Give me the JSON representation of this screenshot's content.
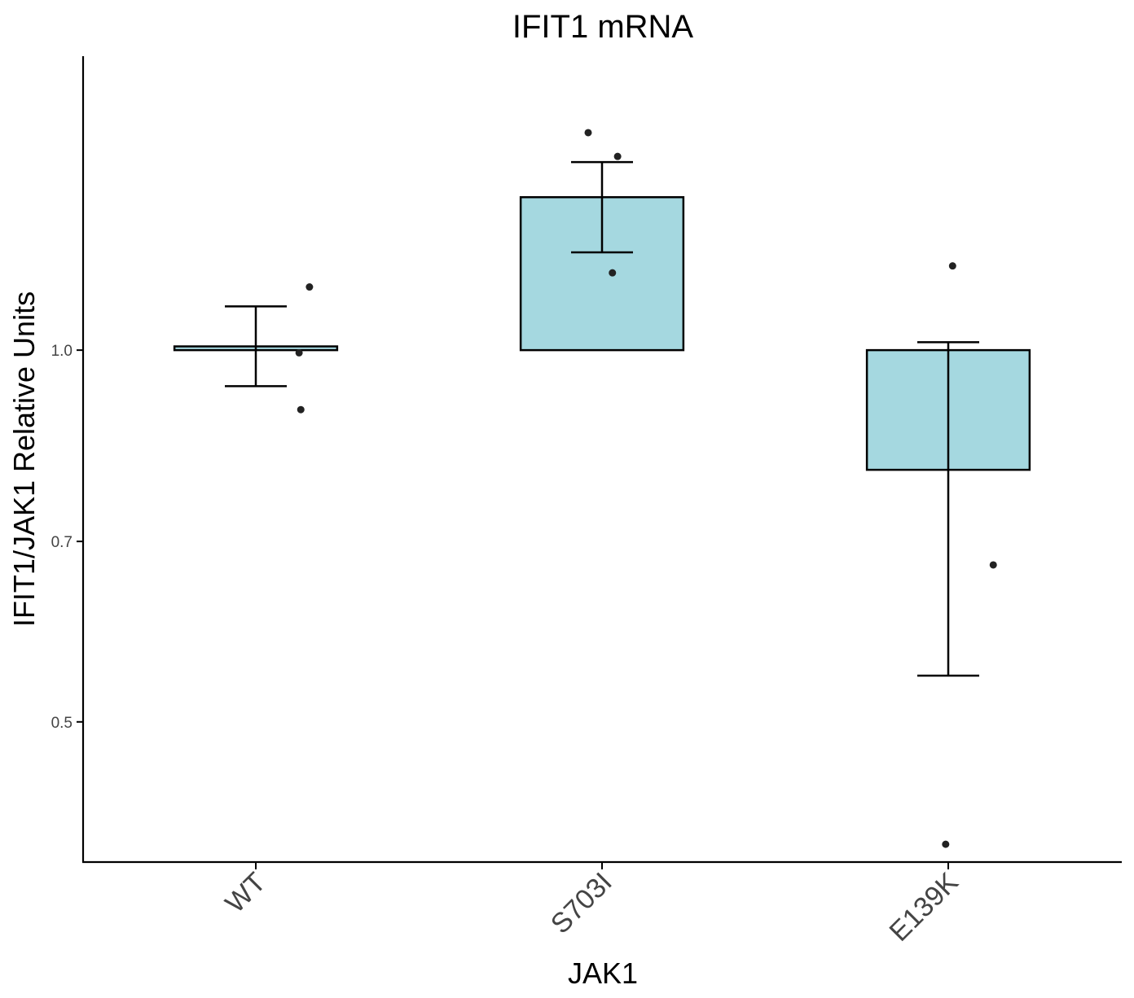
{
  "chart_data": {
    "type": "bar",
    "title": "IFIT1 mRNA",
    "xlabel": "JAK1",
    "ylabel": "IFIT1/JAK1 Relative Units",
    "y_scale": "log",
    "ylim": [
      0.385,
      1.73
    ],
    "yticks": [
      0.5,
      0.7,
      1.0
    ],
    "ytick_labels": [
      "0.5",
      "0.7",
      "1.0"
    ],
    "categories": [
      "WT",
      "S703I",
      "E139K"
    ],
    "bar_baseline": 1.0,
    "values": [
      1.007,
      1.33,
      0.8
    ],
    "error_low": [
      0.935,
      1.2,
      0.545
    ],
    "error_high": [
      1.085,
      1.42,
      1.015
    ],
    "points": [
      [
        1.125,
        0.995,
        0.895
      ],
      [
        1.5,
        1.435,
        1.155
      ],
      [
        1.17,
        0.67,
        0.398
      ]
    ],
    "colors": {
      "bar_fill": "#a5d8e0",
      "bar_stroke": "#000000",
      "point": "#222222"
    },
    "grid": false,
    "legend": "none"
  }
}
